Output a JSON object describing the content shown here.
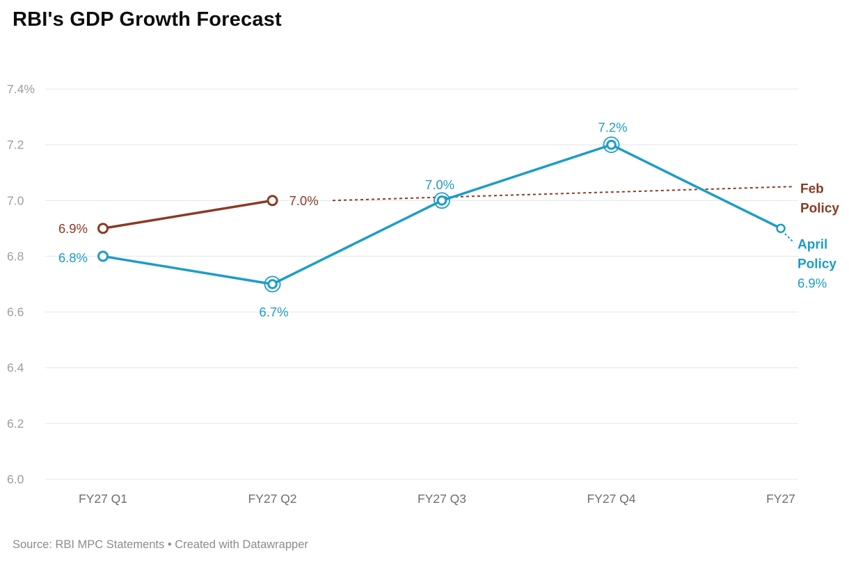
{
  "title": "RBI's GDP Growth Forecast",
  "footer": {
    "text": "Source: RBI MPC Statements • Created with Datawrapper"
  },
  "chart_data": {
    "type": "line",
    "title": "RBI's GDP Growth Forecast",
    "categories": [
      "FY27 Q1",
      "FY27 Q2",
      "FY27 Q3",
      "FY27 Q4",
      "FY27"
    ],
    "xlabel": "",
    "ylabel": "",
    "ylim": [
      6.0,
      7.4
    ],
    "yticks": [
      6.0,
      6.2,
      6.4,
      6.6,
      6.8,
      7.0,
      7.2,
      7.4
    ],
    "ytick_labels": [
      "6.0",
      "6.2",
      "6.4",
      "6.6",
      "6.8",
      "7.0",
      "7.2",
      "7.4%"
    ],
    "grid": true,
    "legend_position": "right-inline",
    "colors": {
      "feb_policy": "#8a3a25",
      "april_policy": "#1d9cc8"
    },
    "series": [
      {
        "name": "Feb Policy",
        "color": "#8a3a25",
        "values": [
          6.9,
          7.0,
          null,
          null,
          null
        ],
        "point_labels": [
          "6.9%",
          "7.0%",
          "",
          "",
          ""
        ],
        "projection": {
          "style": "dashed",
          "from_category": "FY27 Q2",
          "to_value": 7.05
        },
        "end_label": "Feb Policy"
      },
      {
        "name": "April Policy",
        "color": "#1d9cc8",
        "values": [
          6.8,
          6.7,
          7.0,
          7.2,
          6.9
        ],
        "point_labels": [
          "6.8%",
          "6.7%",
          "7.0%",
          "7.2%",
          ""
        ],
        "end_label": "April Policy",
        "end_value_label": "6.9%"
      }
    ]
  }
}
